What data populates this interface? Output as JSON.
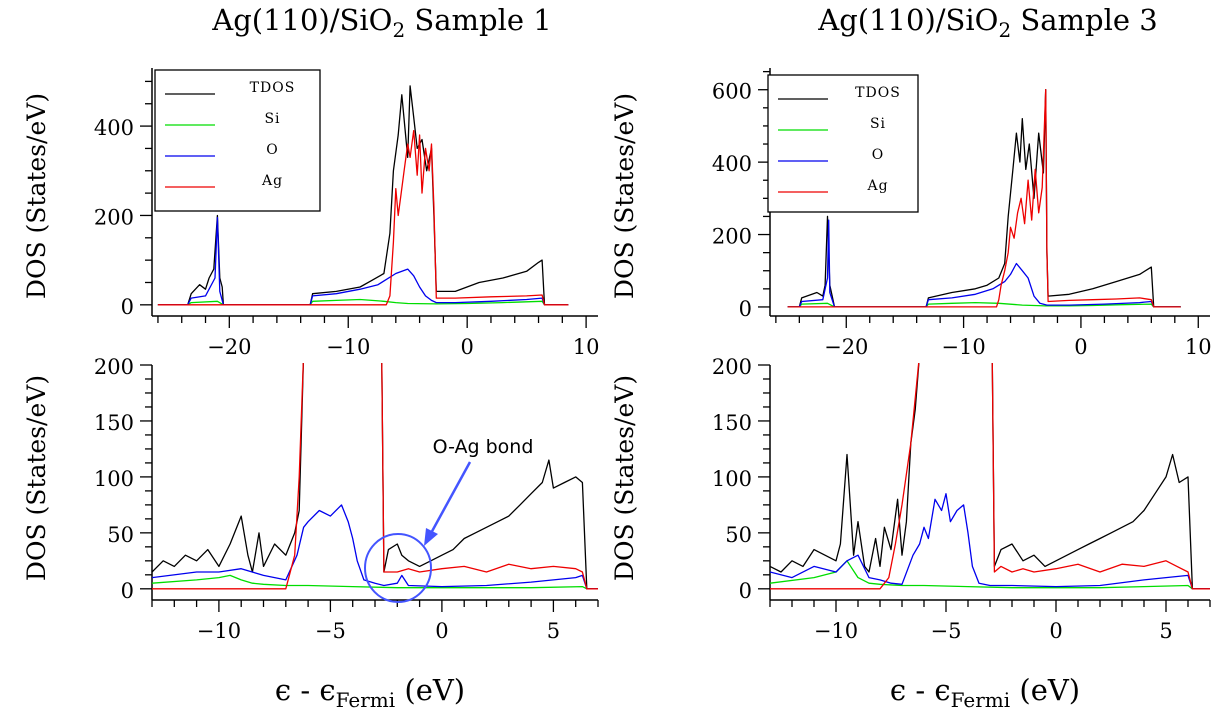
{
  "figure": {
    "panel_titles": {
      "left": {
        "main": "Ag(110)/SiO",
        "sub": "2",
        "rest": " Sample 1"
      },
      "right": {
        "main": "Ag(110)/SiO",
        "sub": "2",
        "rest": " Sample 3"
      }
    },
    "ylabel": "DOS (States/eV)",
    "xlabel": {
      "main": "ϵ - ϵ",
      "sub": "Fermi",
      "rest": " (eV)"
    },
    "annotation": "O-Ag bond",
    "legend": [
      "TDOS",
      "Si",
      "O",
      "Ag"
    ]
  },
  "colors": {
    "TDOS": "#000000",
    "Si": "#00dd00",
    "O": "#0000ee",
    "Ag": "#ee0000",
    "annotation": "#4455ff"
  },
  "chart_data": [
    {
      "type": "line",
      "title": "Ag(110)/SiO2 Sample 1",
      "panel": "top",
      "xlabel": "",
      "ylabel": "DOS (States/eV)",
      "xlim": [
        -26.5,
        11
      ],
      "ylim": [
        -25,
        530
      ],
      "xticks": [
        -20,
        -10,
        0,
        10
      ],
      "yticks": [
        0,
        200,
        400
      ],
      "legend_position": "top-left",
      "series": [
        {
          "name": "TDOS",
          "x": [
            -26,
            -23.5,
            -23.2,
            -22.5,
            -22,
            -21.7,
            -21.3,
            -21.0,
            -20.8,
            -20.6,
            -20.5,
            -13.2,
            -13.0,
            -11,
            -9,
            -8,
            -7,
            -6.5,
            -6.2,
            -5.8,
            -5.5,
            -5.0,
            -4.8,
            -4.5,
            -4.2,
            -3.8,
            -3.4,
            -3.0,
            -2.8,
            -2.6,
            -1,
            1,
            3,
            5,
            6,
            6.3,
            6.5,
            8.5
          ],
          "y": [
            0,
            0,
            25,
            45,
            35,
            60,
            80,
            200,
            60,
            40,
            0,
            0,
            25,
            30,
            40,
            55,
            70,
            160,
            300,
            380,
            470,
            330,
            490,
            420,
            350,
            370,
            300,
            350,
            200,
            30,
            30,
            50,
            60,
            75,
            95,
            100,
            0,
            0
          ]
        },
        {
          "name": "Si",
          "x": [
            -26,
            -23.5,
            -23.2,
            -21,
            -20.5,
            -13.2,
            -13,
            -11,
            -9,
            -8,
            -7,
            -6,
            -5,
            -2.6,
            0,
            3,
            6.3,
            6.5,
            8.5
          ],
          "y": [
            0,
            0,
            5,
            8,
            0,
            0,
            8,
            10,
            12,
            10,
            8,
            5,
            3,
            2,
            3,
            5,
            8,
            0,
            0
          ]
        },
        {
          "name": "O",
          "x": [
            -26,
            -23.5,
            -23.2,
            -22,
            -21.2,
            -21.0,
            -20.8,
            -20.5,
            -13.2,
            -13,
            -11,
            -9,
            -7.5,
            -6,
            -5,
            -4.5,
            -4,
            -3.5,
            -3,
            -2.6,
            -1,
            2,
            5,
            6.3,
            6.5,
            8.5
          ],
          "y": [
            0,
            0,
            15,
            20,
            60,
            195,
            30,
            0,
            0,
            20,
            25,
            35,
            45,
            70,
            80,
            65,
            40,
            20,
            10,
            5,
            5,
            8,
            12,
            15,
            0,
            0
          ]
        },
        {
          "name": "Ag",
          "x": [
            -26,
            -6.8,
            -6.5,
            -6.2,
            -6.0,
            -5.8,
            -5.6,
            -5.3,
            -5.0,
            -4.8,
            -4.5,
            -4.2,
            -4.0,
            -3.8,
            -3.5,
            -3.2,
            -3.0,
            -2.8,
            -2.6,
            -1,
            2,
            5,
            6.3,
            6.5,
            8.5
          ],
          "y": [
            0,
            0,
            20,
            140,
            260,
            200,
            240,
            300,
            360,
            330,
            390,
            290,
            380,
            250,
            350,
            300,
            360,
            220,
            15,
            15,
            18,
            20,
            22,
            0,
            0
          ]
        }
      ]
    },
    {
      "type": "line",
      "title": "",
      "panel": "bottom",
      "xlabel": "ϵ - ϵFermi (eV)",
      "ylabel": "DOS (States/eV)",
      "xlim": [
        -13,
        7
      ],
      "ylim": [
        -10,
        200
      ],
      "xticks": [
        -10,
        -5,
        0,
        5
      ],
      "yticks": [
        0,
        50,
        100,
        150,
        200
      ],
      "annotation": "O-Ag bond",
      "series": [
        {
          "name": "TDOS",
          "x": [
            -13,
            -12.5,
            -12,
            -11.5,
            -11,
            -10.5,
            -10,
            -9.5,
            -9.0,
            -8.7,
            -8.5,
            -8.2,
            -8.0,
            -7.5,
            -7,
            -6.6,
            -6.4,
            -6.2,
            -2.7,
            -2.6,
            -2.4,
            -2.0,
            -1.8,
            -1.5,
            -1,
            -0.5,
            0,
            0.5,
            1,
            1.5,
            2,
            2.5,
            3,
            3.5,
            4,
            4.5,
            4.8,
            5,
            5.5,
            6,
            6.3,
            6.5,
            7
          ],
          "y": [
            15,
            25,
            20,
            30,
            25,
            35,
            20,
            40,
            65,
            30,
            15,
            50,
            20,
            40,
            30,
            50,
            70,
            210,
            210,
            15,
            35,
            40,
            30,
            25,
            20,
            25,
            30,
            35,
            45,
            50,
            55,
            60,
            65,
            75,
            85,
            95,
            115,
            90,
            95,
            100,
            95,
            0,
            0
          ]
        },
        {
          "name": "Si",
          "x": [
            -13,
            -11,
            -10,
            -9.5,
            -9,
            -8.5,
            -8,
            -7,
            -6,
            -4,
            -2,
            0,
            2,
            4,
            6.3,
            6.5,
            7
          ],
          "y": [
            5,
            8,
            10,
            12,
            8,
            5,
            4,
            3,
            3,
            2,
            1,
            1,
            1,
            1,
            2,
            0,
            0
          ]
        },
        {
          "name": "O",
          "x": [
            -13,
            -11,
            -10,
            -9,
            -8,
            -7,
            -6.5,
            -6.2,
            -6,
            -5.5,
            -5,
            -4.5,
            -4.2,
            -4,
            -3.8,
            -3.5,
            -3,
            -2.6,
            -2,
            -1.8,
            -1.5,
            0,
            2,
            4,
            6,
            6.3,
            6.5,
            7
          ],
          "y": [
            10,
            15,
            15,
            18,
            12,
            8,
            30,
            55,
            60,
            70,
            65,
            75,
            60,
            45,
            25,
            8,
            5,
            3,
            5,
            12,
            3,
            2,
            3,
            6,
            10,
            12,
            0,
            0
          ]
        },
        {
          "name": "Ag",
          "x": [
            -13,
            -7,
            -6.6,
            -6.4,
            -6.2,
            -6.0,
            -5.5,
            -5.0,
            -4.5,
            -4.0,
            -3.5,
            -3.0,
            -2.7,
            -2.6,
            -2.0,
            -1.5,
            -1.0,
            0,
            1,
            2,
            3,
            4,
            5,
            6,
            6.3,
            6.5,
            7
          ],
          "y": [
            0,
            0,
            30,
            100,
            210,
            210,
            210,
            210,
            210,
            210,
            210,
            210,
            210,
            15,
            15,
            18,
            15,
            18,
            20,
            15,
            22,
            18,
            20,
            18,
            15,
            0,
            0
          ]
        }
      ]
    },
    {
      "type": "line",
      "title": "Ag(110)/SiO2 Sample 3",
      "panel": "top",
      "xlabel": "",
      "ylabel": "DOS (States/eV)",
      "xlim": [
        -26.5,
        11
      ],
      "ylim": [
        -25,
        660
      ],
      "xticks": [
        -20,
        -10,
        0,
        10
      ],
      "yticks": [
        0,
        200,
        400,
        600
      ],
      "legend_position": "top-left",
      "series": [
        {
          "name": "TDOS",
          "x": [
            -25,
            -24,
            -23.8,
            -22.5,
            -22,
            -21.8,
            -21.6,
            -21.4,
            -21.2,
            -21.0,
            -13.2,
            -13,
            -11,
            -9,
            -8,
            -7,
            -6.5,
            -6.2,
            -5.8,
            -5.5,
            -5.2,
            -5,
            -4.7,
            -4.4,
            -4,
            -3.6,
            -3.2,
            -3.0,
            -2.9,
            -2.8,
            -1,
            1,
            3,
            5,
            6,
            6.2,
            8.5
          ],
          "y": [
            0,
            0,
            25,
            40,
            30,
            60,
            250,
            60,
            30,
            0,
            0,
            25,
            40,
            50,
            60,
            80,
            120,
            250,
            380,
            480,
            400,
            520,
            380,
            450,
            300,
            480,
            370,
            600,
            150,
            30,
            35,
            50,
            70,
            90,
            110,
            0,
            0
          ]
        },
        {
          "name": "Si",
          "x": [
            -25,
            -24,
            -23.8,
            -21.6,
            -21,
            -13.2,
            -13,
            -11,
            -9,
            -7,
            -5,
            -3,
            -1,
            1,
            3,
            6,
            6.2,
            8.5
          ],
          "y": [
            0,
            0,
            8,
            10,
            0,
            0,
            8,
            10,
            12,
            10,
            5,
            3,
            3,
            4,
            6,
            8,
            0,
            0
          ]
        },
        {
          "name": "O",
          "x": [
            -25,
            -24,
            -23.8,
            -22,
            -21.6,
            -21.5,
            -21.4,
            -21.0,
            -13.2,
            -13,
            -11,
            -9,
            -7.5,
            -6.5,
            -6,
            -5.5,
            -5,
            -4.5,
            -4,
            -3.5,
            -2.9,
            -1,
            2,
            5,
            6,
            6.2,
            8.5
          ],
          "y": [
            0,
            0,
            15,
            20,
            80,
            240,
            40,
            0,
            0,
            20,
            25,
            35,
            50,
            70,
            90,
            120,
            100,
            80,
            30,
            10,
            5,
            5,
            8,
            12,
            15,
            0,
            0
          ]
        },
        {
          "name": "Ag",
          "x": [
            -25,
            -7.2,
            -7,
            -6.8,
            -6.5,
            -6.2,
            -6.0,
            -5.7,
            -5.4,
            -5.1,
            -4.8,
            -4.5,
            -4.2,
            -3.9,
            -3.6,
            -3.3,
            -3.0,
            -2.9,
            -2.8,
            -1,
            1,
            3,
            5,
            6,
            6.2,
            8.5
          ],
          "y": [
            0,
            0,
            20,
            60,
            100,
            150,
            220,
            190,
            260,
            300,
            230,
            350,
            240,
            380,
            260,
            330,
            600,
            160,
            15,
            18,
            20,
            22,
            25,
            20,
            0,
            0
          ]
        }
      ]
    },
    {
      "type": "line",
      "title": "",
      "panel": "bottom",
      "xlabel": "ϵ - ϵFermi (eV)",
      "ylabel": "DOS (States/eV)",
      "xlim": [
        -13,
        7
      ],
      "ylim": [
        -10,
        200
      ],
      "xticks": [
        -10,
        -5,
        0,
        5
      ],
      "yticks": [
        0,
        50,
        100,
        150,
        200
      ],
      "series": [
        {
          "name": "TDOS",
          "x": [
            -13,
            -12.5,
            -12,
            -11.5,
            -11,
            -10.5,
            -10,
            -9.8,
            -9.5,
            -9.2,
            -9,
            -8.7,
            -8.5,
            -8.2,
            -8,
            -7.8,
            -7.5,
            -7.2,
            -7,
            -6.8,
            -6.6,
            -6.4,
            -6.2,
            -6.0,
            -2.9,
            -2.8,
            -2.5,
            -2,
            -1.5,
            -1,
            -0.5,
            0,
            0.5,
            1,
            1.5,
            2,
            2.5,
            3,
            3.5,
            4,
            4.5,
            5,
            5.3,
            5.6,
            6,
            6.2,
            7
          ],
          "y": [
            20,
            15,
            25,
            20,
            35,
            30,
            25,
            40,
            120,
            30,
            60,
            20,
            15,
            45,
            20,
            55,
            35,
            80,
            30,
            60,
            130,
            160,
            210,
            210,
            210,
            20,
            35,
            40,
            25,
            30,
            20,
            25,
            30,
            35,
            40,
            45,
            50,
            55,
            60,
            70,
            85,
            100,
            120,
            95,
            100,
            0,
            0
          ]
        },
        {
          "name": "Si",
          "x": [
            -13,
            -11,
            -10,
            -9.5,
            -9,
            -8.5,
            -8,
            -7,
            -6,
            -4,
            -2,
            0,
            2,
            4,
            6,
            6.2,
            7
          ],
          "y": [
            5,
            10,
            15,
            25,
            10,
            5,
            4,
            3,
            3,
            2,
            1,
            1,
            1,
            2,
            3,
            0,
            0
          ]
        },
        {
          "name": "O",
          "x": [
            -13,
            -12,
            -11,
            -10,
            -9.5,
            -9,
            -8.5,
            -8,
            -7.5,
            -7,
            -6.5,
            -6.2,
            -6,
            -5.8,
            -5.5,
            -5.2,
            -5,
            -4.8,
            -4.5,
            -4.2,
            -4,
            -3.8,
            -3.5,
            -3,
            -2,
            0,
            2,
            4,
            6,
            6.2,
            7
          ],
          "y": [
            15,
            10,
            20,
            15,
            25,
            30,
            10,
            8,
            5,
            4,
            30,
            40,
            55,
            45,
            80,
            70,
            85,
            60,
            70,
            75,
            50,
            20,
            5,
            3,
            3,
            2,
            3,
            8,
            12,
            0,
            0
          ]
        },
        {
          "name": "Ag",
          "x": [
            -13,
            -8,
            -7.6,
            -7.3,
            -7.0,
            -6.6,
            -6.2,
            -6.0,
            -5.0,
            -4.0,
            -3.0,
            -2.9,
            -2.8,
            -2.5,
            -2,
            -1.5,
            -1,
            0,
            1,
            2,
            3,
            4,
            5,
            5.5,
            6,
            6.2,
            7
          ],
          "y": [
            0,
            0,
            10,
            40,
            75,
            130,
            210,
            210,
            210,
            210,
            210,
            210,
            15,
            20,
            15,
            18,
            15,
            18,
            22,
            15,
            22,
            20,
            25,
            20,
            15,
            0,
            0
          ]
        }
      ]
    }
  ]
}
